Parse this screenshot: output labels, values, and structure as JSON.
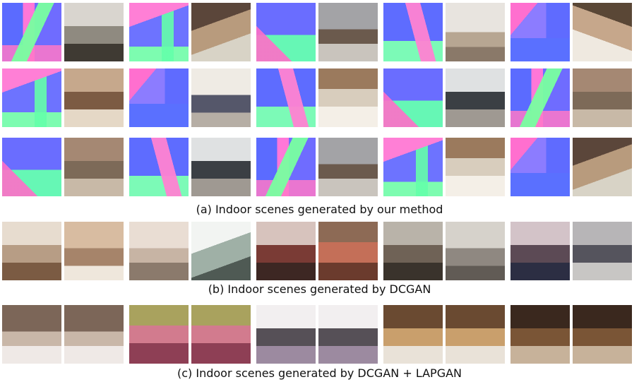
{
  "figure": {
    "captions": {
      "a": "(a) Indoor scenes generated by our method",
      "b": "(b) Indoor scenes generated by DCGAN",
      "c": "(c) Indoor scenes generated by DCGAN + LAPGAN"
    },
    "section_a": {
      "rows": [
        [
          {
            "normal": "nA",
            "photo": "p1"
          },
          {
            "normal": "nB",
            "photo": "p2"
          },
          {
            "normal": "nC",
            "photo": "p3"
          },
          {
            "normal": "nD",
            "photo": "p4"
          },
          {
            "normal": "nE",
            "photo": "p5"
          }
        ],
        [
          {
            "normal": "nB",
            "photo": "p6"
          },
          {
            "normal": "nE",
            "photo": "p7"
          },
          {
            "normal": "nD",
            "photo": "p8"
          },
          {
            "normal": "nC",
            "photo": "p9"
          },
          {
            "normal": "nA",
            "photo": "p10"
          }
        ],
        [
          {
            "normal": "nC",
            "photo": "p10"
          },
          {
            "normal": "nD",
            "photo": "p9"
          },
          {
            "normal": "nA",
            "photo": "p3"
          },
          {
            "normal": "nB",
            "photo": "p8"
          },
          {
            "normal": "nE",
            "photo": "p2"
          }
        ]
      ]
    },
    "section_b": {
      "row": [
        {
          "left": "d1",
          "right": "d2"
        },
        {
          "left": "d3",
          "right": "d4"
        },
        {
          "left": "d5",
          "right": "d6"
        },
        {
          "left": "d7",
          "right": "d8"
        },
        {
          "left": "d9",
          "right": "d10"
        }
      ]
    },
    "section_c": {
      "row": [
        {
          "left": "l1",
          "right": "l1"
        },
        {
          "left": "l2",
          "right": "l2"
        },
        {
          "left": "l3",
          "right": "l3"
        },
        {
          "left": "l4",
          "right": "l4"
        },
        {
          "left": "l5",
          "right": "l5"
        }
      ]
    }
  }
}
